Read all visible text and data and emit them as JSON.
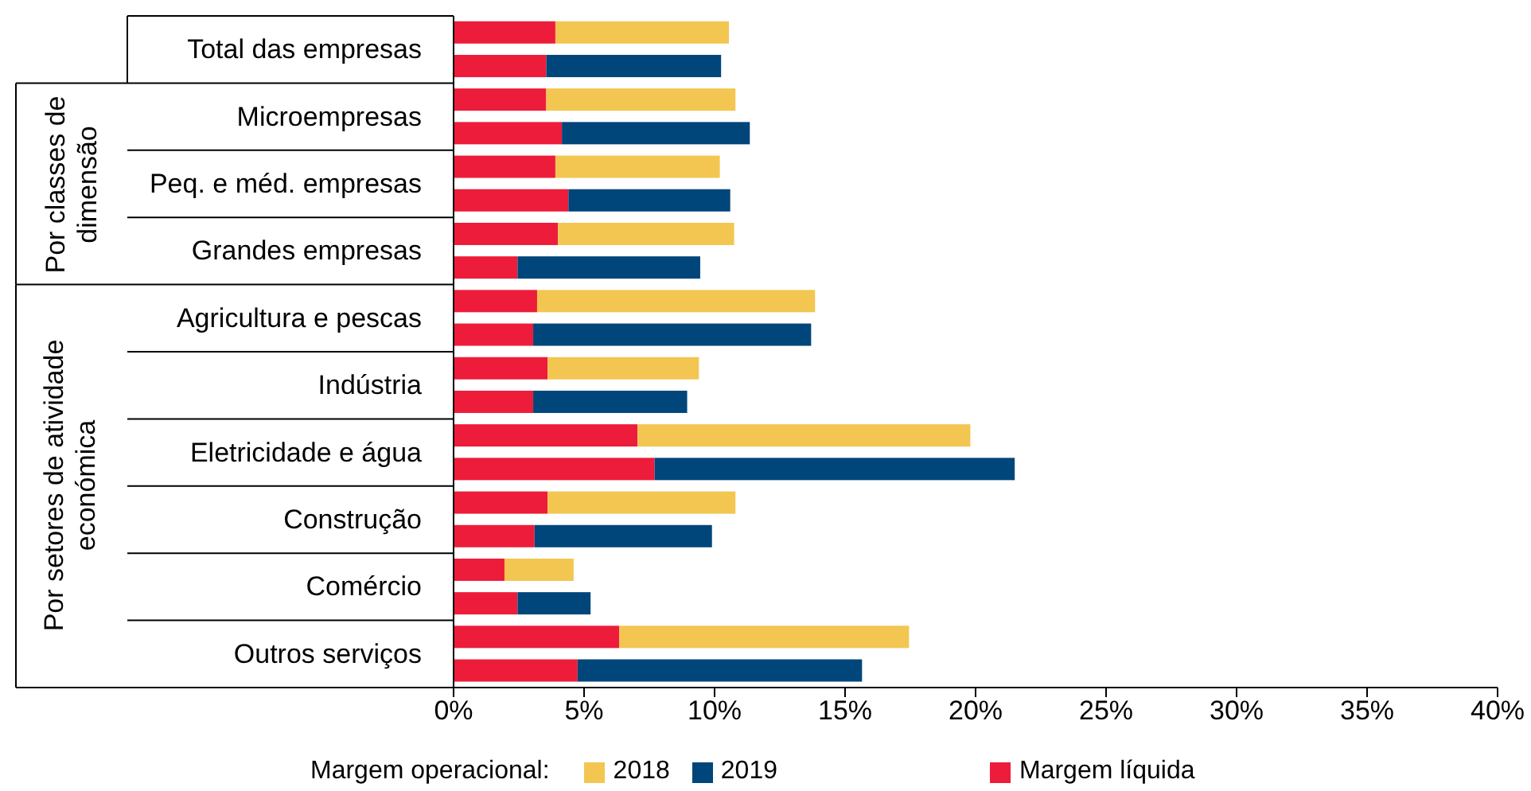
{
  "chart_data": {
    "type": "bar",
    "orientation": "horizontal",
    "stacked": true,
    "categories": [
      "Total das empresas",
      null,
      "Microempresas",
      null,
      "Peq. e méd. empresas",
      null,
      "Grandes empresas",
      null,
      "Agricultura e pescas",
      null,
      "Indústria",
      null,
      "Eletricidade e água",
      null,
      "Construção",
      null,
      "Comércio",
      null,
      "Outros serviços",
      null
    ],
    "series": [
      {
        "name": "Margem líquida",
        "color": "#ed1c3a",
        "values": [
          3.9,
          3.55,
          3.55,
          4.15,
          3.9,
          4.4,
          4.0,
          2.45,
          3.2,
          3.05,
          3.6,
          3.05,
          7.05,
          7.7,
          3.6,
          3.1,
          1.95,
          2.45,
          6.35,
          4.75
        ]
      },
      {
        "name": "2018",
        "color": "#f2c651",
        "values": [
          6.65,
          null,
          7.25,
          null,
          6.3,
          null,
          6.75,
          null,
          10.65,
          null,
          5.8,
          null,
          12.75,
          null,
          7.2,
          null,
          2.65,
          null,
          11.1,
          null
        ]
      },
      {
        "name": "2019",
        "color": "#00467a",
        "values": [
          null,
          6.7,
          null,
          7.2,
          null,
          6.2,
          null,
          7.0,
          null,
          10.65,
          null,
          5.9,
          null,
          13.8,
          null,
          6.8,
          null,
          2.8,
          null,
          10.9
        ]
      }
    ],
    "xlim": [
      0,
      40
    ],
    "xticks": [
      {
        "value": 0,
        "label": "0%"
      },
      {
        "value": 5,
        "label": "5%"
      },
      {
        "value": 10,
        "label": "10%"
      },
      {
        "value": 15,
        "label": "15%"
      },
      {
        "value": 20,
        "label": "20%"
      },
      {
        "value": 25,
        "label": "25%"
      },
      {
        "value": 30,
        "label": "30%"
      },
      {
        "value": 35,
        "label": "35%"
      },
      {
        "value": 40,
        "label": "40%"
      }
    ],
    "legend_title": "Margem operacional:",
    "legend": "bottom",
    "annotations": [
      "Por classes de dimensão",
      "Por setores de atividade económica"
    ]
  }
}
